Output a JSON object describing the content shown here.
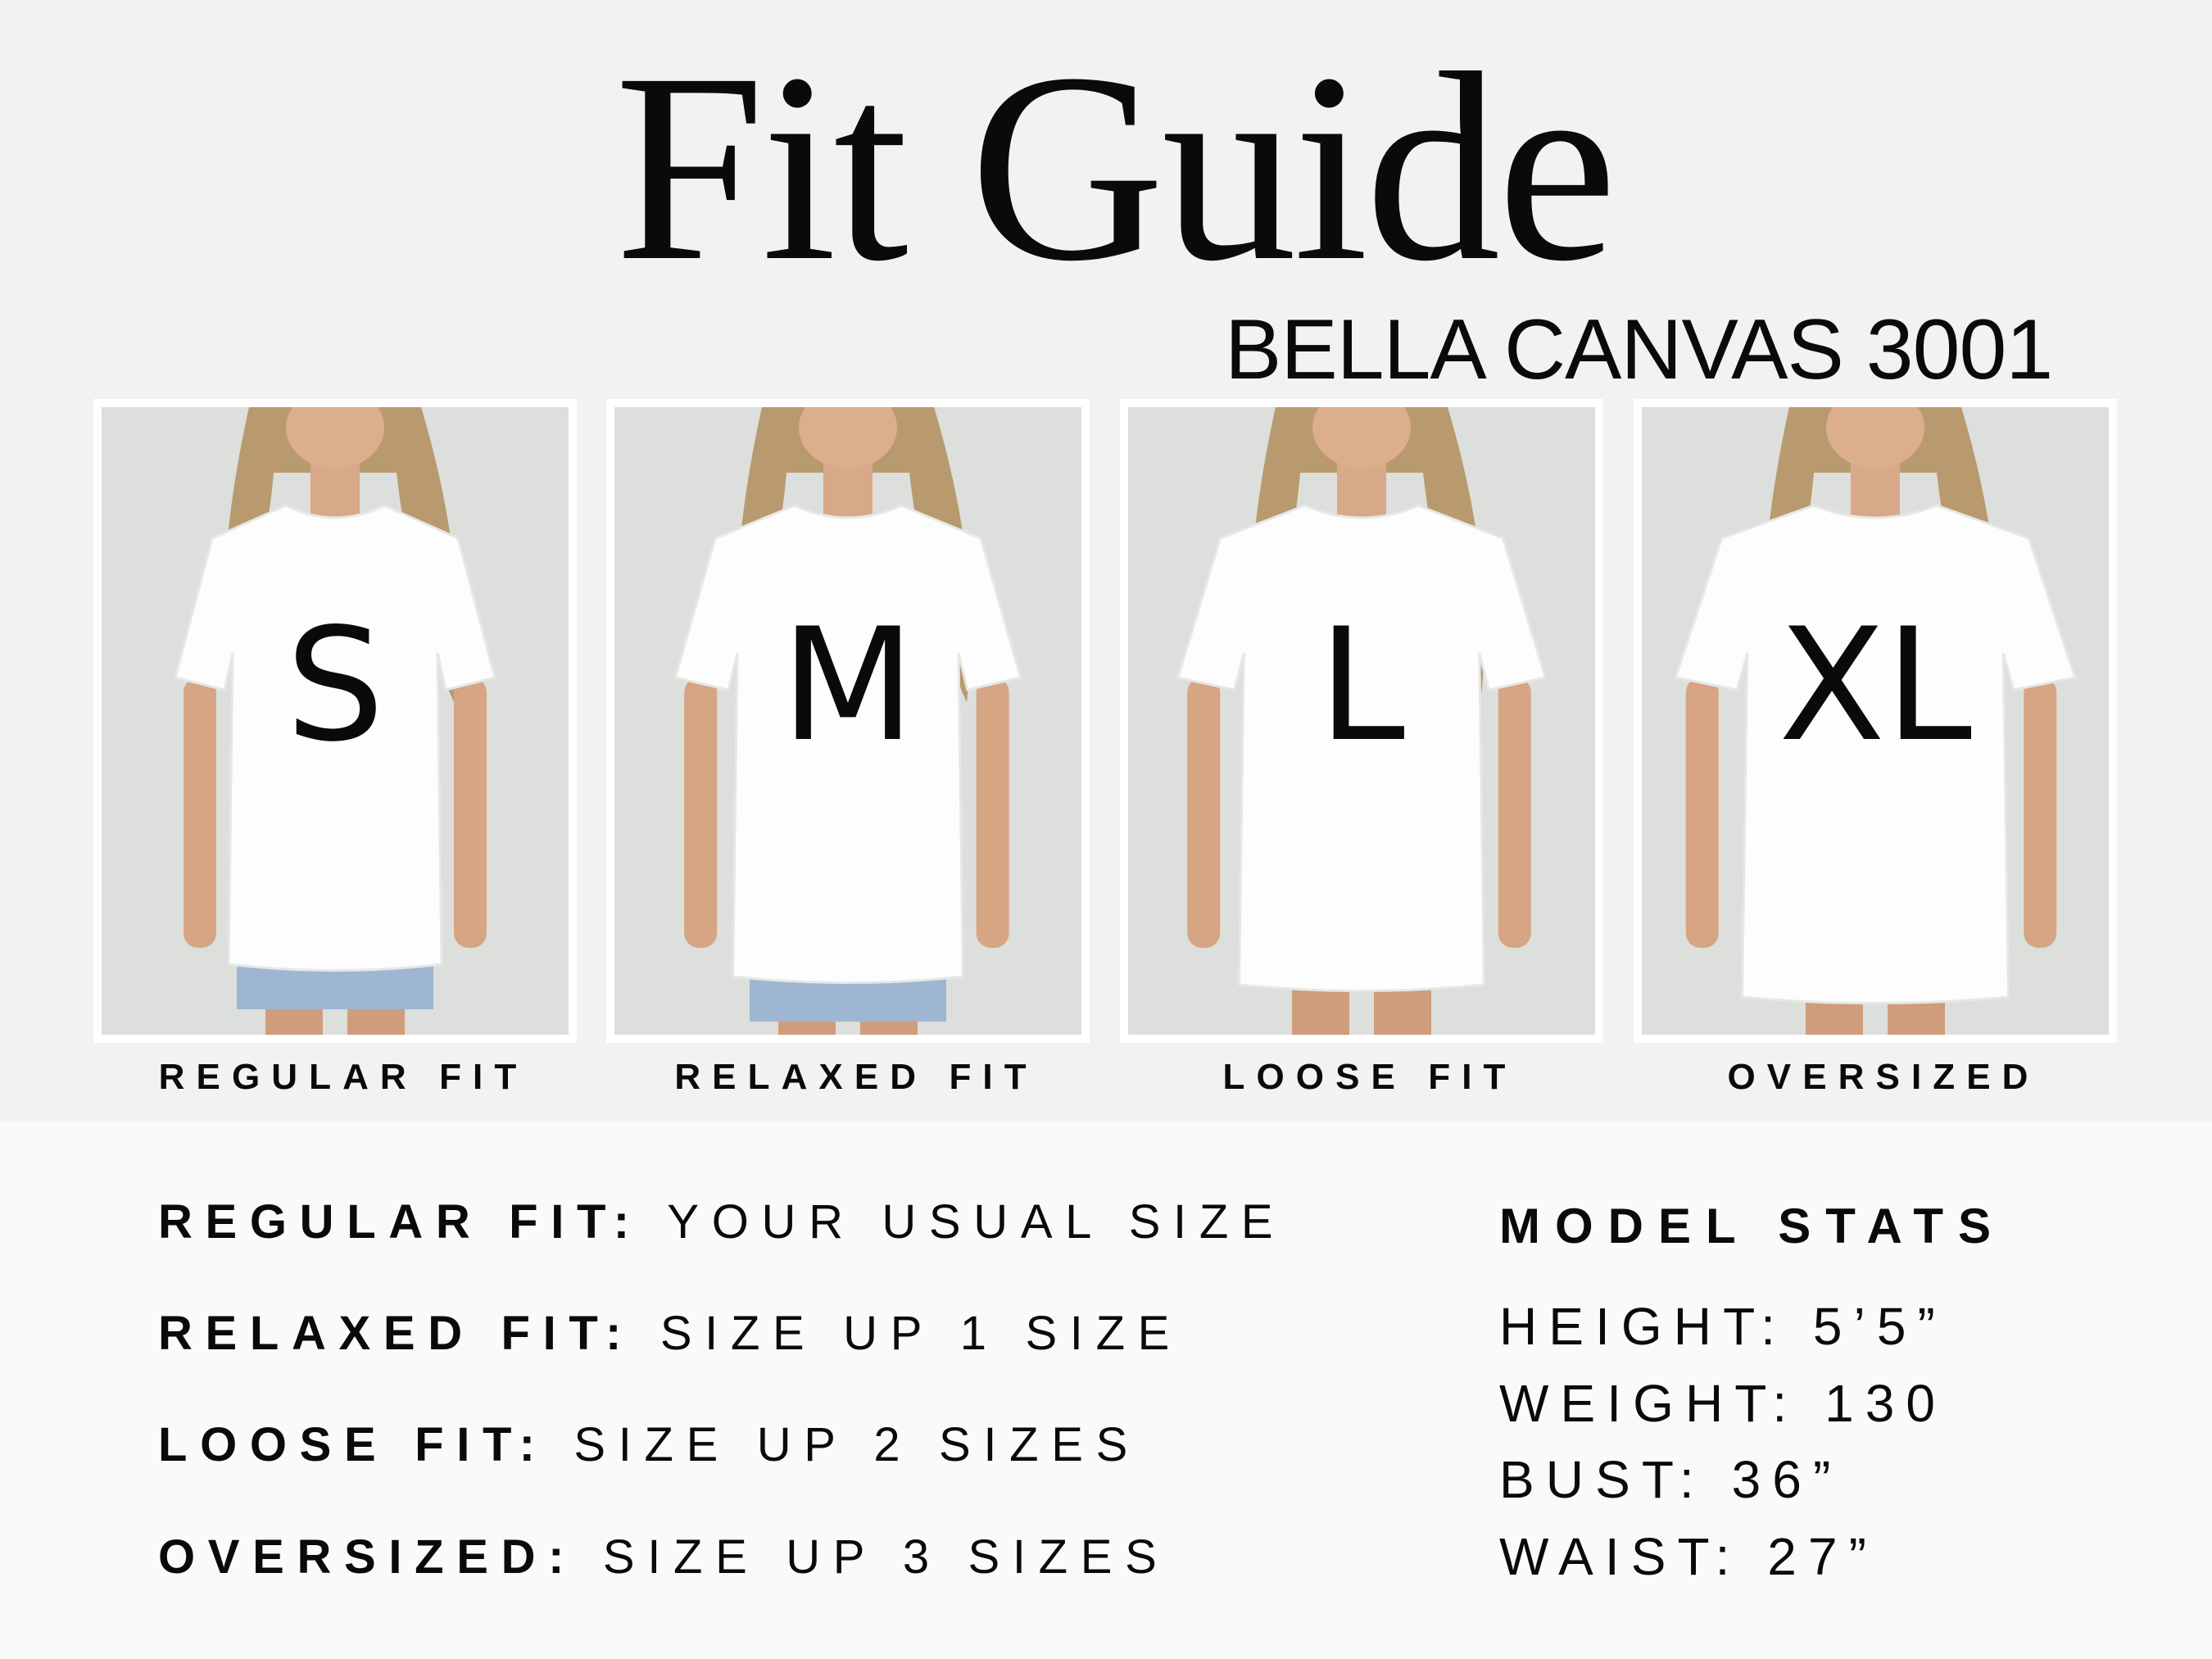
{
  "header": {
    "title": "Fit Guide",
    "subtitle": "BELLA CANVAS 3001"
  },
  "panels": [
    {
      "size": "S",
      "label": "REGULAR FIT"
    },
    {
      "size": "M",
      "label": "RELAXED FIT"
    },
    {
      "size": "L",
      "label": "LOOSE FIT"
    },
    {
      "size": "XL",
      "label": "OVERSIZED"
    }
  ],
  "rules": [
    {
      "term": "REGULAR FIT:",
      "desc": "YOUR USUAL SIZE"
    },
    {
      "term": "RELAXED FIT:",
      "desc": "SIZE UP 1 SIZE"
    },
    {
      "term": "LOOSE FIT:",
      "desc": "SIZE UP 2 SIZES"
    },
    {
      "term": "OVERSIZED:",
      "desc": "SIZE UP 3 SIZES"
    }
  ],
  "model_stats": {
    "title": "MODEL STATS",
    "lines": [
      "HEIGHT: 5’5”",
      "WEIGHT: 130",
      "BUST: 36”",
      "WAIST: 27”"
    ]
  },
  "colors": {
    "background_top": "#f2f2f2",
    "background_bottom": "#fafafa",
    "text": "#0a0a0a",
    "shirt": "#ffffff",
    "photo_backdrop": "#dcdfdb"
  }
}
